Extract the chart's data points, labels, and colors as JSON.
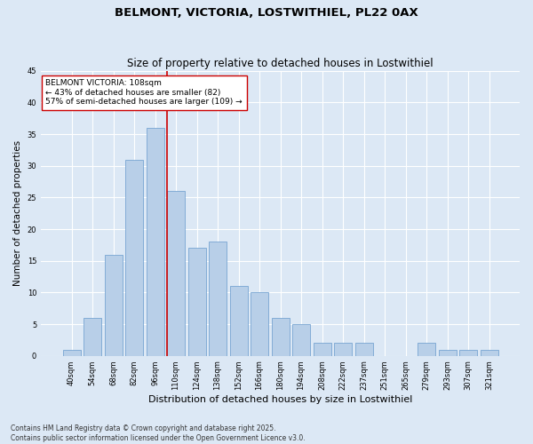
{
  "title": "BELMONT, VICTORIA, LOSTWITHIEL, PL22 0AX",
  "subtitle": "Size of property relative to detached houses in Lostwithiel",
  "xlabel": "Distribution of detached houses by size in Lostwithiel",
  "ylabel": "Number of detached properties",
  "categories": [
    "40sqm",
    "54sqm",
    "68sqm",
    "82sqm",
    "96sqm",
    "110sqm",
    "124sqm",
    "138sqm",
    "152sqm",
    "166sqm",
    "180sqm",
    "194sqm",
    "208sqm",
    "222sqm",
    "237sqm",
    "251sqm",
    "265sqm",
    "279sqm",
    "293sqm",
    "307sqm",
    "321sqm"
  ],
  "values": [
    1,
    6,
    16,
    31,
    36,
    26,
    17,
    18,
    11,
    10,
    6,
    5,
    2,
    2,
    2,
    0,
    0,
    2,
    1,
    1,
    1
  ],
  "bar_color": "#b8cfe8",
  "bar_edge_color": "#6699cc",
  "background_color": "#dce8f5",
  "grid_color": "#ffffff",
  "vline_color": "#cc0000",
  "vline_x_index": 4.57,
  "annotation_text": "BELMONT VICTORIA: 108sqm\n← 43% of detached houses are smaller (82)\n57% of semi-detached houses are larger (109) →",
  "annotation_box_facecolor": "#ffffff",
  "annotation_box_edgecolor": "#cc0000",
  "ylim": [
    0,
    45
  ],
  "yticks": [
    0,
    5,
    10,
    15,
    20,
    25,
    30,
    35,
    40,
    45
  ],
  "footnote": "Contains HM Land Registry data © Crown copyright and database right 2025.\nContains public sector information licensed under the Open Government Licence v3.0.",
  "title_fontsize": 9.5,
  "subtitle_fontsize": 8.5,
  "xlabel_fontsize": 8,
  "ylabel_fontsize": 7.5,
  "tick_fontsize": 6,
  "annotation_fontsize": 6.5,
  "footnote_fontsize": 5.5
}
